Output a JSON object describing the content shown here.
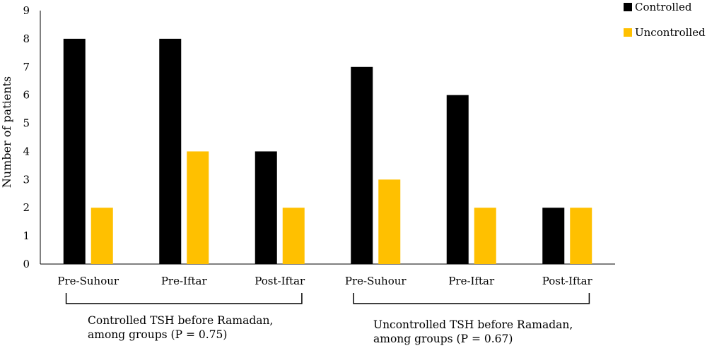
{
  "chart_data": {
    "type": "bar",
    "categories": [
      "Pre-Suhour",
      "Pre-Iftar",
      "Post-Iftar",
      "Pre-Suhour",
      "Pre-Iftar",
      "Post-Iftar"
    ],
    "series": [
      {
        "name": "Controlled",
        "color": "#000000",
        "values": [
          8,
          8,
          4,
          7,
          6,
          2
        ]
      },
      {
        "name": "Uncontrolled",
        "color": "#FFC000",
        "values": [
          2,
          4,
          2,
          3,
          2,
          2
        ]
      }
    ],
    "title": "",
    "xlabel": "",
    "ylabel": "Number of patients",
    "ylim": [
      0,
      9
    ],
    "yticks": [
      0,
      1,
      2,
      3,
      4,
      5,
      6,
      7,
      8,
      9
    ],
    "grid": false,
    "legend_position": "top-right",
    "groups": [
      {
        "caption_lines": [
          "Controlled TSH before Ramadan,",
          "among groups (P = 0.75)"
        ],
        "categories": [
          0,
          1,
          2
        ]
      },
      {
        "caption_lines": [
          "Uncontrolled TSH before Ramadan,",
          "among groups (P = 0.67)"
        ],
        "categories": [
          3,
          4,
          5
        ]
      }
    ]
  }
}
